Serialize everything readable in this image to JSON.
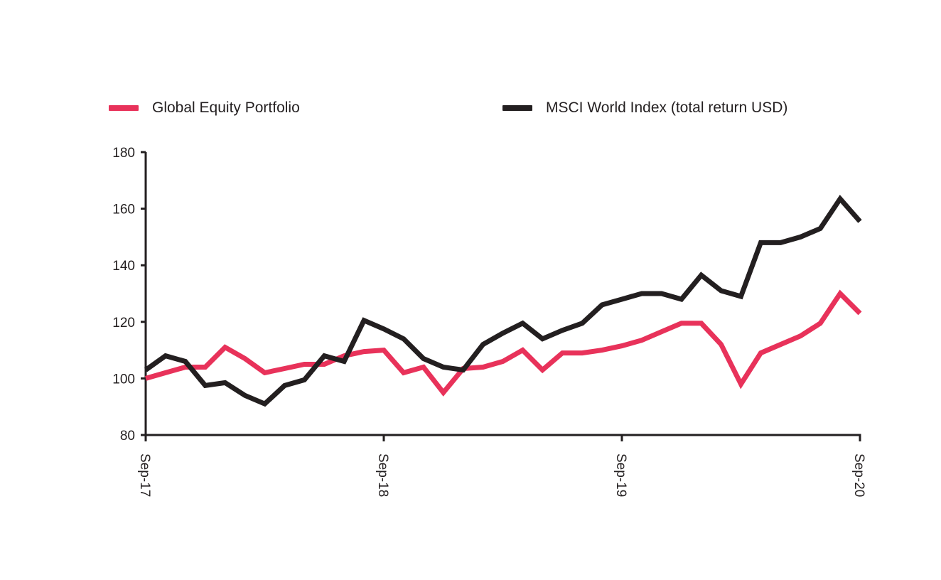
{
  "legend": [
    {
      "name": "Global Equity Portfolio",
      "color": "#e8325a"
    },
    {
      "name": "MSCI World Index (total return USD)",
      "color": "#231f20"
    }
  ],
  "chart_data": {
    "type": "line",
    "title": "",
    "xlabel": "",
    "ylabel": "",
    "ylim": [
      80,
      180
    ],
    "yticks": [
      80,
      100,
      120,
      140,
      160,
      180
    ],
    "xtick_labels": [
      "Sep-17",
      "Sep-18",
      "Sep-19",
      "Sep-20"
    ],
    "xlim": [
      0,
      36
    ],
    "grid": false,
    "legend_position": "top",
    "series": [
      {
        "name": "Global Equity Portfolio",
        "color": "#e8325a",
        "x": [
          0,
          1,
          2,
          3,
          4,
          5,
          6,
          7,
          8,
          9,
          10,
          11,
          12,
          13,
          14,
          15,
          16,
          17,
          18,
          19,
          20,
          21,
          22,
          23,
          24,
          25,
          26,
          27,
          28,
          29,
          30,
          31,
          32,
          33,
          34,
          35,
          36
        ],
        "values": [
          100,
          102,
          104,
          104,
          111,
          107,
          102,
          103.5,
          105,
          105,
          108,
          109.5,
          110,
          102,
          104,
          95,
          103.5,
          104,
          106,
          110,
          103,
          109,
          109,
          110,
          111.5,
          113.5,
          116.5,
          119.5,
          119.5,
          112,
          98,
          109,
          112,
          115,
          119.5,
          130,
          123
        ]
      },
      {
        "name": "MSCI World Index (total return USD)",
        "color": "#231f20",
        "x": [
          0,
          1,
          2,
          3,
          4,
          5,
          6,
          7,
          8,
          9,
          10,
          11,
          12,
          13,
          14,
          15,
          16,
          17,
          18,
          19,
          20,
          21,
          22,
          23,
          24,
          25,
          26,
          27,
          28,
          29,
          30,
          31,
          32,
          33,
          34,
          35,
          36
        ],
        "values": [
          103,
          108,
          106,
          97.5,
          98.5,
          94,
          91,
          97.5,
          99.5,
          108,
          106,
          120.5,
          117.5,
          114,
          107,
          104,
          103,
          112,
          116,
          119.5,
          114,
          117,
          119.5,
          126,
          128,
          130,
          130,
          128,
          136.5,
          131,
          129,
          148,
          148,
          150,
          153,
          163.5,
          155.5
        ]
      }
    ]
  }
}
